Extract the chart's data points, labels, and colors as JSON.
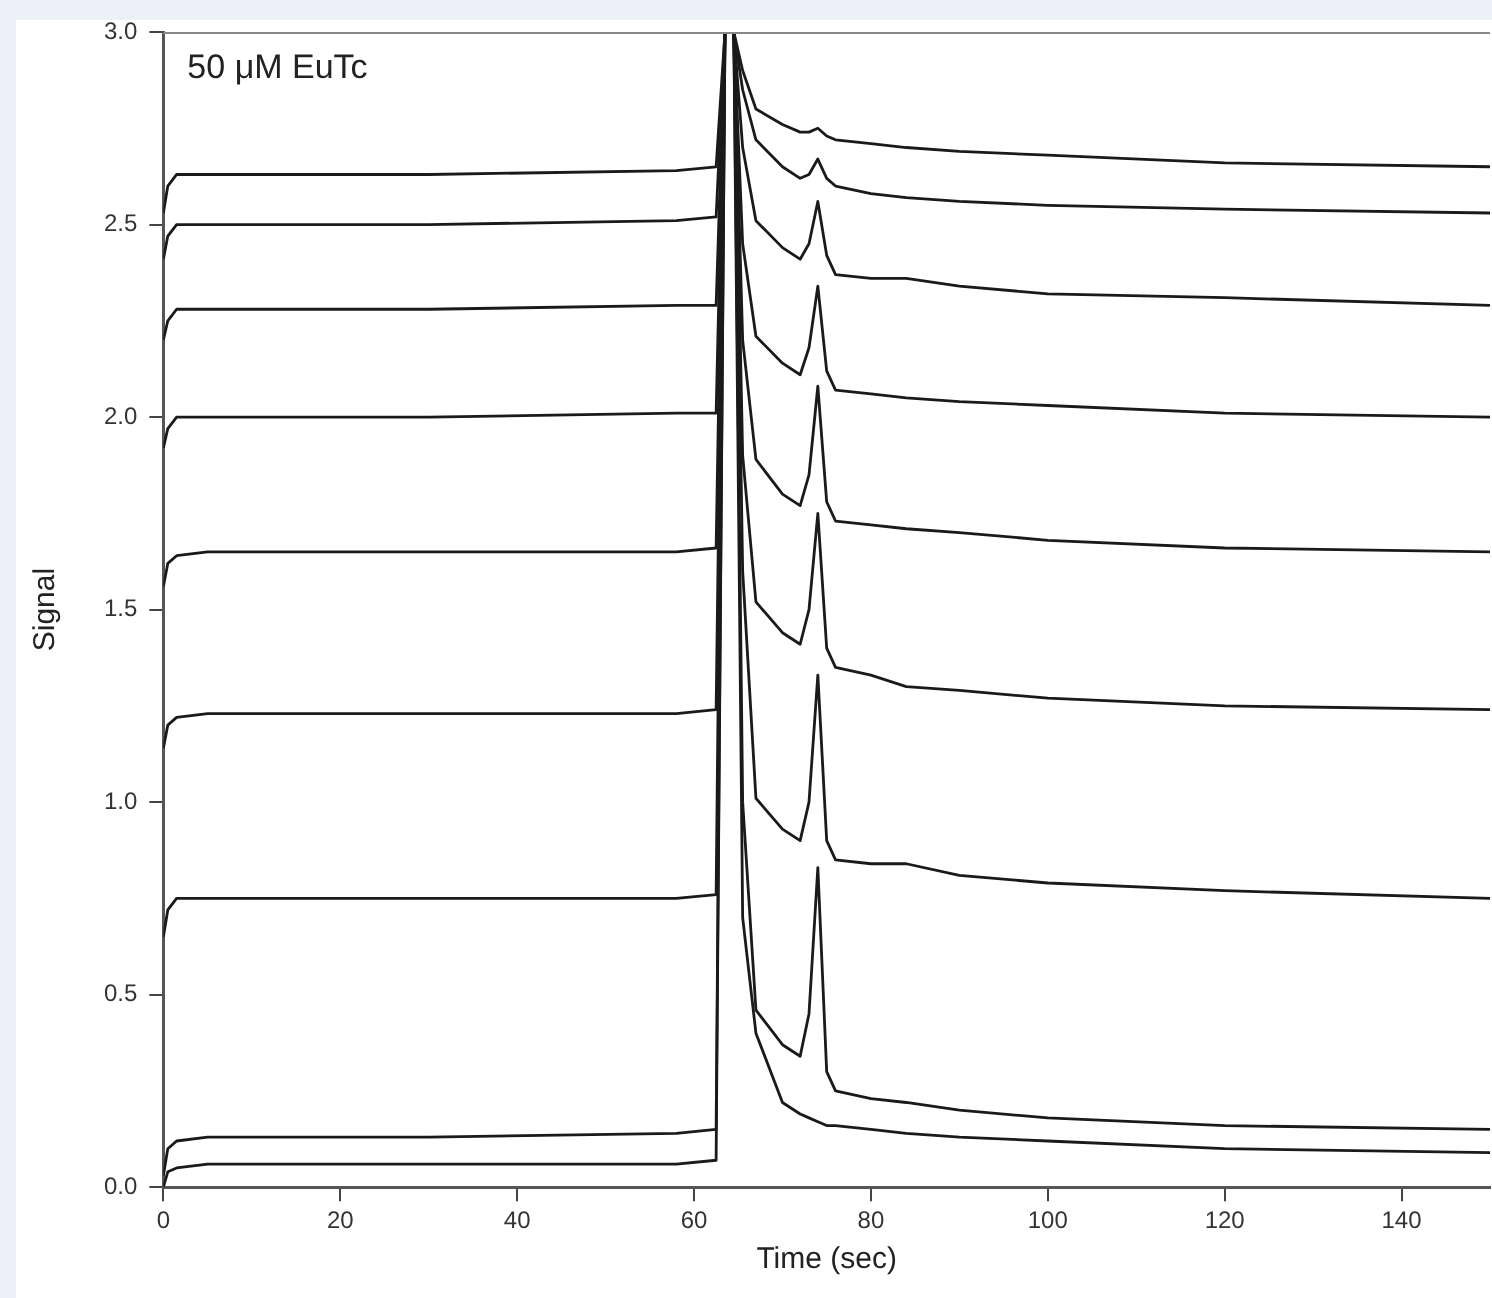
{
  "chart_data": {
    "type": "line",
    "xlabel": "Time (sec)",
    "ylabel": "Signal",
    "annotations": [
      "50 μM EuTc"
    ],
    "x": [
      0,
      0.5,
      1.5,
      5,
      30,
      58,
      62.5,
      63.5,
      64.5,
      65.5,
      67,
      70,
      72,
      73,
      74,
      75,
      76,
      80,
      84,
      90,
      100,
      120,
      150
    ],
    "series": [
      {
        "color": "#1a1a1a",
        "values": [
          2.53,
          2.6,
          2.63,
          2.63,
          2.63,
          2.64,
          2.65,
          3.0,
          3.0,
          2.9,
          2.8,
          2.76,
          2.74,
          2.74,
          2.75,
          2.73,
          2.72,
          2.71,
          2.7,
          2.69,
          2.68,
          2.66,
          2.65
        ]
      },
      {
        "color": "#1a1a1a",
        "values": [
          2.41,
          2.47,
          2.5,
          2.5,
          2.5,
          2.51,
          2.52,
          3.0,
          3.0,
          2.85,
          2.72,
          2.65,
          2.62,
          2.63,
          2.67,
          2.62,
          2.6,
          2.58,
          2.57,
          2.56,
          2.55,
          2.54,
          2.53
        ]
      },
      {
        "color": "#1a1a1a",
        "values": [
          2.2,
          2.25,
          2.28,
          2.28,
          2.28,
          2.29,
          2.29,
          3.0,
          3.0,
          2.7,
          2.51,
          2.44,
          2.41,
          2.45,
          2.56,
          2.42,
          2.37,
          2.36,
          2.36,
          2.34,
          2.32,
          2.31,
          2.29
        ]
      },
      {
        "color": "#1a1a1a",
        "values": [
          1.92,
          1.97,
          2.0,
          2.0,
          2.0,
          2.01,
          2.01,
          3.0,
          3.0,
          2.45,
          2.21,
          2.14,
          2.11,
          2.18,
          2.34,
          2.12,
          2.07,
          2.06,
          2.05,
          2.04,
          2.03,
          2.01,
          2.0
        ]
      },
      {
        "color": "#1a1a1a",
        "values": [
          1.56,
          1.62,
          1.64,
          1.65,
          1.65,
          1.65,
          1.66,
          3.0,
          3.0,
          2.2,
          1.89,
          1.8,
          1.77,
          1.85,
          2.08,
          1.78,
          1.73,
          1.72,
          1.71,
          1.7,
          1.68,
          1.66,
          1.65
        ]
      },
      {
        "color": "#1a1a1a",
        "values": [
          1.14,
          1.2,
          1.22,
          1.23,
          1.23,
          1.23,
          1.24,
          3.0,
          3.0,
          1.9,
          1.52,
          1.44,
          1.41,
          1.5,
          1.75,
          1.4,
          1.35,
          1.33,
          1.3,
          1.29,
          1.27,
          1.25,
          1.24
        ]
      },
      {
        "color": "#1a1a1a",
        "values": [
          0.65,
          0.72,
          0.75,
          0.75,
          0.75,
          0.75,
          0.76,
          3.0,
          3.0,
          1.6,
          1.01,
          0.93,
          0.9,
          1.0,
          1.33,
          0.9,
          0.85,
          0.84,
          0.84,
          0.81,
          0.79,
          0.77,
          0.75
        ]
      },
      {
        "color": "#1a1a1a",
        "values": [
          0.03,
          0.1,
          0.12,
          0.13,
          0.13,
          0.14,
          0.15,
          3.0,
          3.0,
          1.0,
          0.46,
          0.37,
          0.34,
          0.45,
          0.83,
          0.3,
          0.25,
          0.23,
          0.22,
          0.2,
          0.18,
          0.16,
          0.15
        ]
      },
      {
        "color": "#1a1a1a",
        "values": [
          0.0,
          0.04,
          0.05,
          0.06,
          0.06,
          0.06,
          0.07,
          3.0,
          3.0,
          0.7,
          0.4,
          0.22,
          0.19,
          0.18,
          0.17,
          0.16,
          0.16,
          0.15,
          0.14,
          0.13,
          0.12,
          0.1,
          0.09
        ]
      }
    ],
    "xlim": [
      0,
      150
    ],
    "xticks": [
      0,
      20,
      40,
      60,
      80,
      100,
      120,
      140
    ],
    "ylim": [
      0,
      3
    ],
    "yticks": [
      {
        "value": 0,
        "label": "0.0"
      },
      {
        "value": 0.5,
        "label": "0.5"
      },
      {
        "value": 1,
        "label": "1.0"
      },
      {
        "value": 1.5,
        "label": "1.5"
      },
      {
        "value": 2,
        "label": "2.0"
      },
      {
        "value": 2.5,
        "label": "2.5"
      },
      {
        "value": 3,
        "label": "3.0"
      }
    ],
    "grid": false,
    "legend": false,
    "marker": "none",
    "line_style": "solid"
  }
}
